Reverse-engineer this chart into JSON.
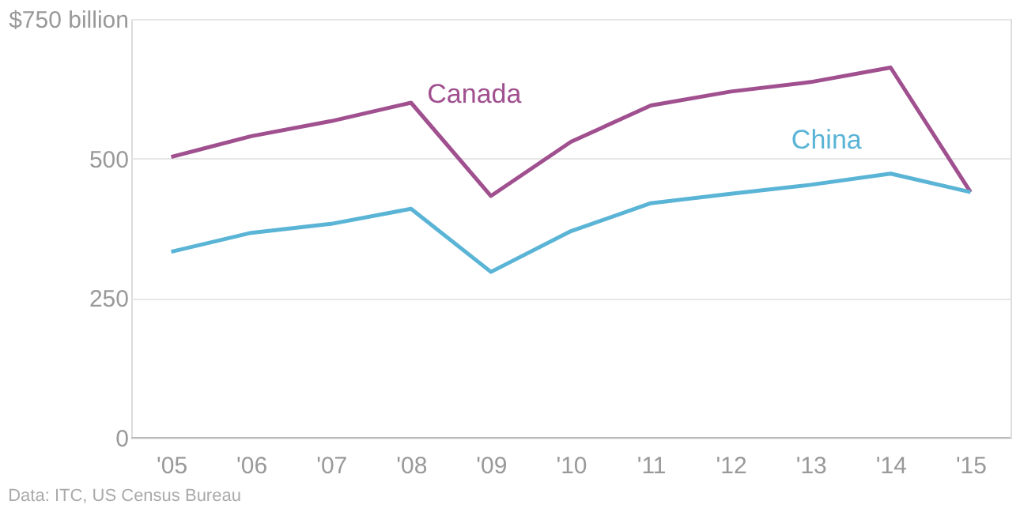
{
  "chart_data": {
    "type": "line",
    "categories": [
      "'05",
      "'06",
      "'07",
      "'08",
      "'09",
      "'10",
      "'11",
      "'12",
      "'13",
      "'14",
      "'15"
    ],
    "series": [
      {
        "name": "Canada",
        "color": "#a0508f",
        "values": [
          503,
          540,
          567,
          600,
          433,
          530,
          595,
          620,
          637,
          663,
          440
        ]
      },
      {
        "name": "China",
        "color": "#5ab4d6",
        "values": [
          333,
          367,
          383,
          410,
          297,
          370,
          420,
          437,
          453,
          473,
          440
        ]
      }
    ],
    "ylim": [
      0,
      750
    ],
    "yticks": [
      0,
      250,
      500,
      {
        "value": 750,
        "label": "$750 billion"
      }
    ],
    "grid": "y",
    "marker": "none",
    "line_style": "solid",
    "annotations": [
      "Data: ITC, US Census Bureau"
    ]
  }
}
